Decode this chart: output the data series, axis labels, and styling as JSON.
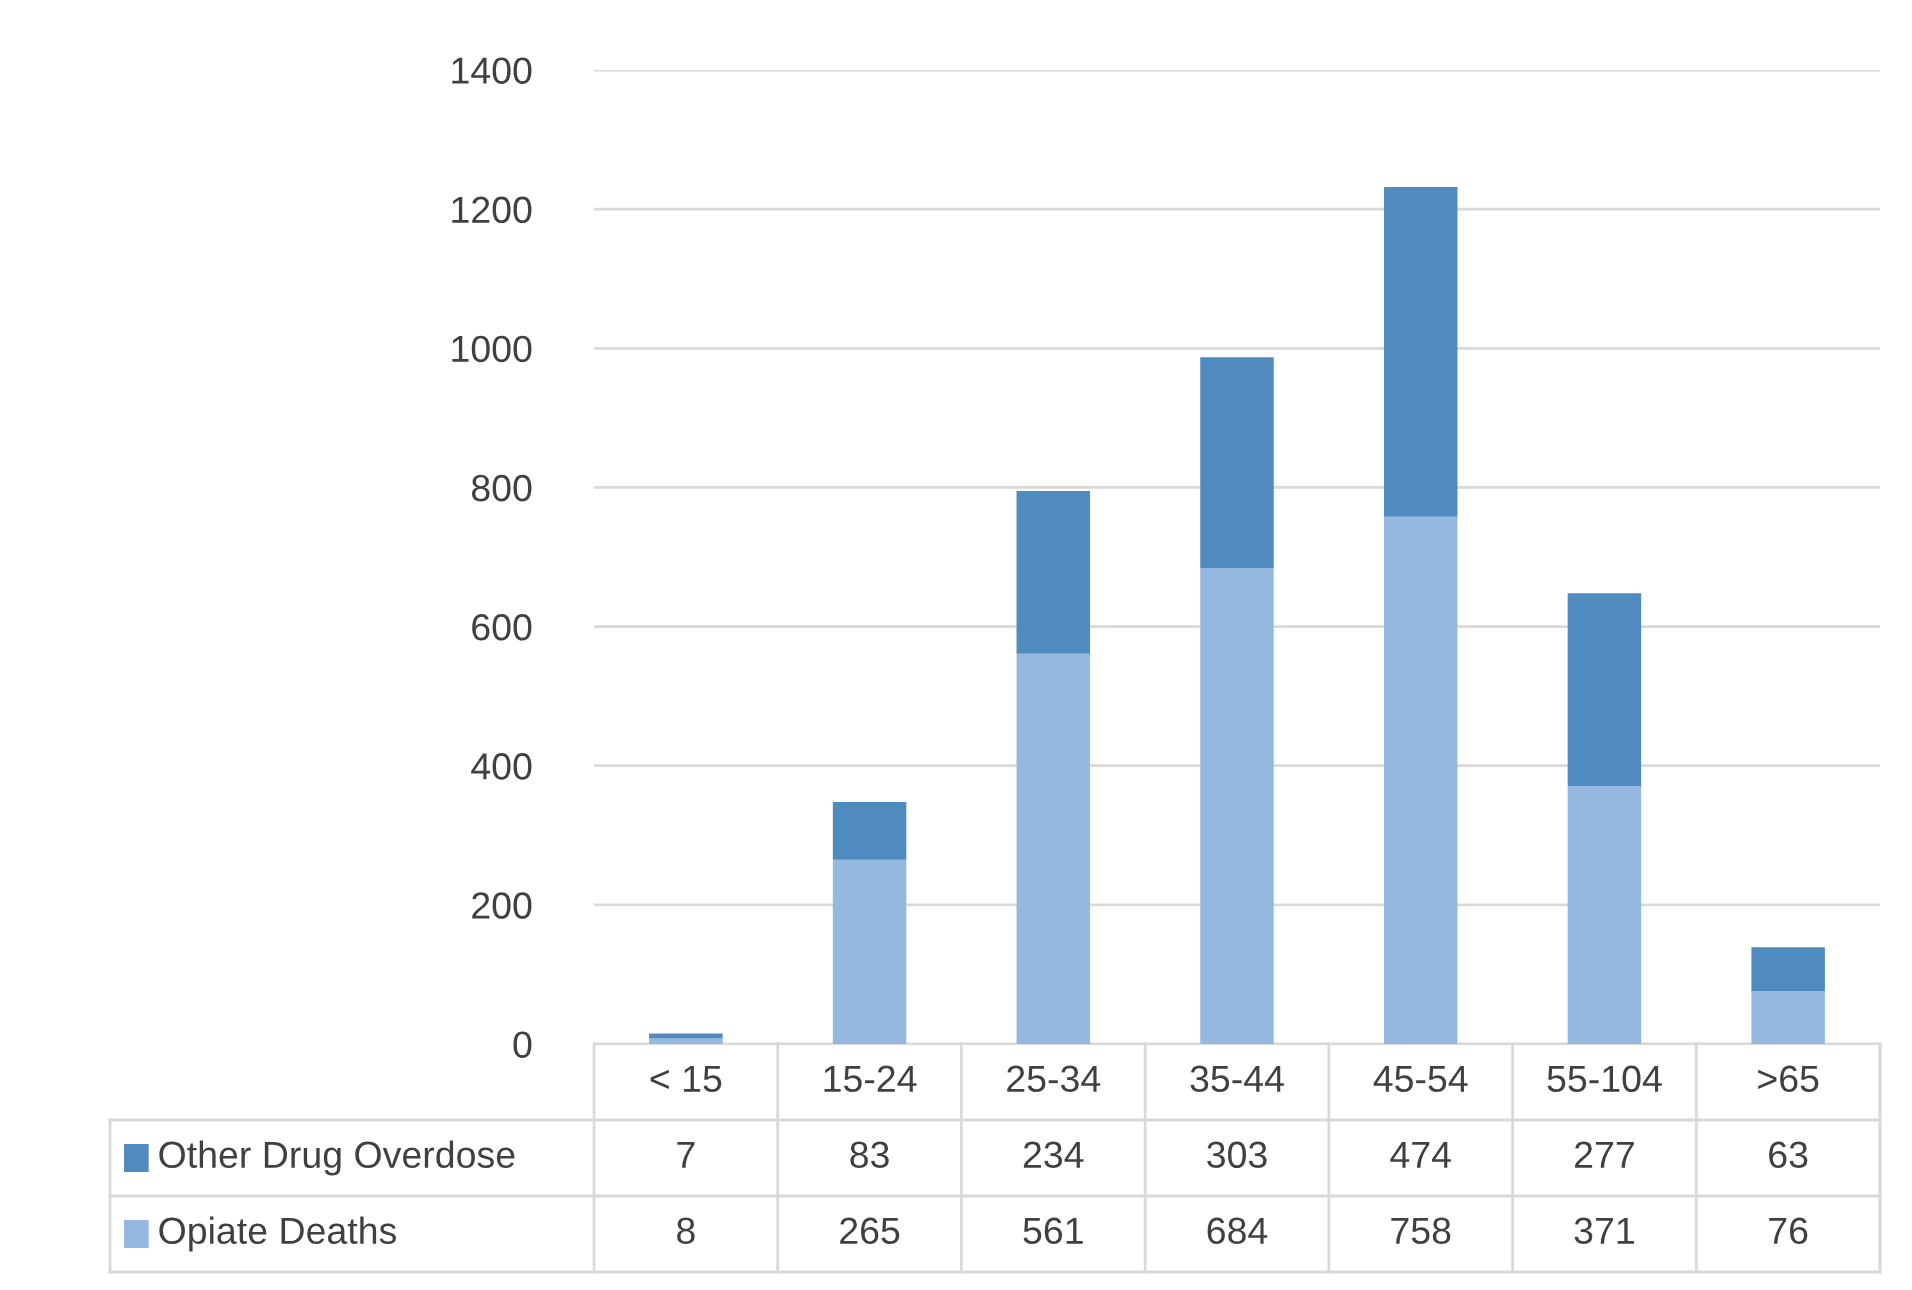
{
  "chart_data": {
    "type": "bar",
    "stacked": true,
    "categories": [
      "< 15",
      "15-24",
      "25-34",
      "35-44",
      "45-54",
      "55-104",
      ">65"
    ],
    "series": [
      {
        "name": "Opiate Deaths",
        "color": "#95b8e0",
        "values": [
          8,
          265,
          561,
          684,
          758,
          371,
          76
        ]
      },
      {
        "name": "Other Drug Overdose",
        "color": "#4f8bbf",
        "values": [
          7,
          83,
          234,
          303,
          474,
          277,
          63
        ]
      }
    ],
    "ylim": [
      0,
      1400
    ],
    "yticks": [
      0,
      200,
      400,
      600,
      800,
      1000,
      1200,
      1400
    ],
    "grid": "y",
    "data_labels": true,
    "legend": "bottom"
  }
}
